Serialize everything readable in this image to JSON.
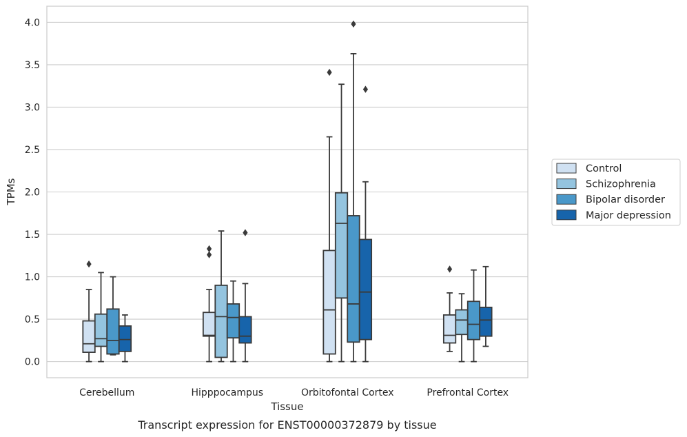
{
  "caption": "Transcript expression for ENST00000372879 by tissue",
  "chart_data": {
    "type": "box",
    "xlabel": "Tissue",
    "ylabel": "TPMs",
    "ylim": [
      -0.19,
      4.19
    ],
    "yticks": [
      0.0,
      0.5,
      1.0,
      1.5,
      2.0,
      2.5,
      3.0,
      3.5,
      4.0
    ],
    "ytick_labels": [
      "0.0",
      "0.5",
      "1.0",
      "1.5",
      "2.0",
      "2.5",
      "3.0",
      "3.5",
      "4.0"
    ],
    "grid": "horizontal",
    "legend_position": "right",
    "categories": [
      "Cerebellum",
      "Hipppocampus",
      "Orbitofontal Cortex",
      "Prefrontal Cortex"
    ],
    "series": [
      {
        "name": "Control",
        "color": "#d0e1f2",
        "boxes": [
          {
            "min": 0.0,
            "q1": 0.11,
            "median": 0.21,
            "q3": 0.48,
            "max": 0.85,
            "outliers": [
              1.15
            ]
          },
          {
            "min": 0.0,
            "q1": 0.3,
            "median": 0.31,
            "q3": 0.58,
            "max": 0.85,
            "outliers": [
              1.26,
              1.33
            ]
          },
          {
            "min": 0.0,
            "q1": 0.09,
            "median": 0.61,
            "q3": 1.31,
            "max": 2.65,
            "outliers": [
              3.41
            ]
          },
          {
            "min": 0.12,
            "q1": 0.22,
            "median": 0.31,
            "q3": 0.55,
            "max": 0.81,
            "outliers": [
              1.09
            ]
          }
        ]
      },
      {
        "name": "Schizophrenia",
        "color": "#94c4df",
        "boxes": [
          {
            "min": 0.0,
            "q1": 0.18,
            "median": 0.27,
            "q3": 0.56,
            "max": 1.05,
            "outliers": []
          },
          {
            "min": 0.0,
            "q1": 0.05,
            "median": 0.53,
            "q3": 0.9,
            "max": 1.54,
            "outliers": []
          },
          {
            "min": 0.0,
            "q1": 0.75,
            "median": 1.63,
            "q3": 1.99,
            "max": 3.27,
            "outliers": []
          },
          {
            "min": 0.0,
            "q1": 0.32,
            "median": 0.49,
            "q3": 0.61,
            "max": 0.8,
            "outliers": []
          }
        ]
      },
      {
        "name": "Bipolar disorder",
        "color": "#4a98c9",
        "boxes": [
          {
            "min": 0.08,
            "q1": 0.09,
            "median": 0.25,
            "q3": 0.62,
            "max": 1.0,
            "outliers": []
          },
          {
            "min": 0.0,
            "q1": 0.28,
            "median": 0.52,
            "q3": 0.68,
            "max": 0.95,
            "outliers": []
          },
          {
            "min": 0.0,
            "q1": 0.23,
            "median": 0.68,
            "q3": 1.72,
            "max": 3.63,
            "outliers": [
              3.98
            ]
          },
          {
            "min": 0.0,
            "q1": 0.26,
            "median": 0.44,
            "q3": 0.71,
            "max": 1.08,
            "outliers": []
          }
        ]
      },
      {
        "name": "Major depression",
        "color": "#1764ab",
        "boxes": [
          {
            "min": 0.0,
            "q1": 0.12,
            "median": 0.26,
            "q3": 0.42,
            "max": 0.55,
            "outliers": []
          },
          {
            "min": 0.0,
            "q1": 0.22,
            "median": 0.3,
            "q3": 0.53,
            "max": 0.92,
            "outliers": [
              1.52
            ]
          },
          {
            "min": 0.0,
            "q1": 0.26,
            "median": 0.82,
            "q3": 1.44,
            "max": 2.12,
            "outliers": [
              3.21
            ]
          },
          {
            "min": 0.18,
            "q1": 0.3,
            "median": 0.49,
            "q3": 0.64,
            "max": 1.12,
            "outliers": []
          }
        ]
      }
    ]
  }
}
